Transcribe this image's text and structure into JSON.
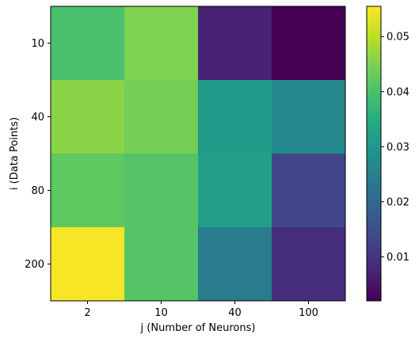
{
  "chart_data": {
    "type": "heatmap",
    "title": "",
    "xlabel": "j (Number of Neurons)",
    "ylabel": "i (Data Points)",
    "x_categories": [
      "2",
      "10",
      "40",
      "100"
    ],
    "y_categories": [
      "10",
      "40",
      "80",
      "200"
    ],
    "values": [
      [
        0.04,
        0.045,
        0.007,
        0.002
      ],
      [
        0.046,
        0.044,
        0.031,
        0.027
      ],
      [
        0.042,
        0.041,
        0.032,
        0.013
      ],
      [
        0.055,
        0.041,
        0.024,
        0.009
      ]
    ],
    "colorbar": {
      "min": 0.002,
      "max": 0.0555,
      "ticks": [
        0.01,
        0.02,
        0.03,
        0.04,
        0.05
      ],
      "tick_labels": [
        "0.01",
        "0.02",
        "0.03",
        "0.04",
        "0.05"
      ]
    },
    "colormap": "viridis",
    "grid": false,
    "legend": "colorbar-right"
  }
}
